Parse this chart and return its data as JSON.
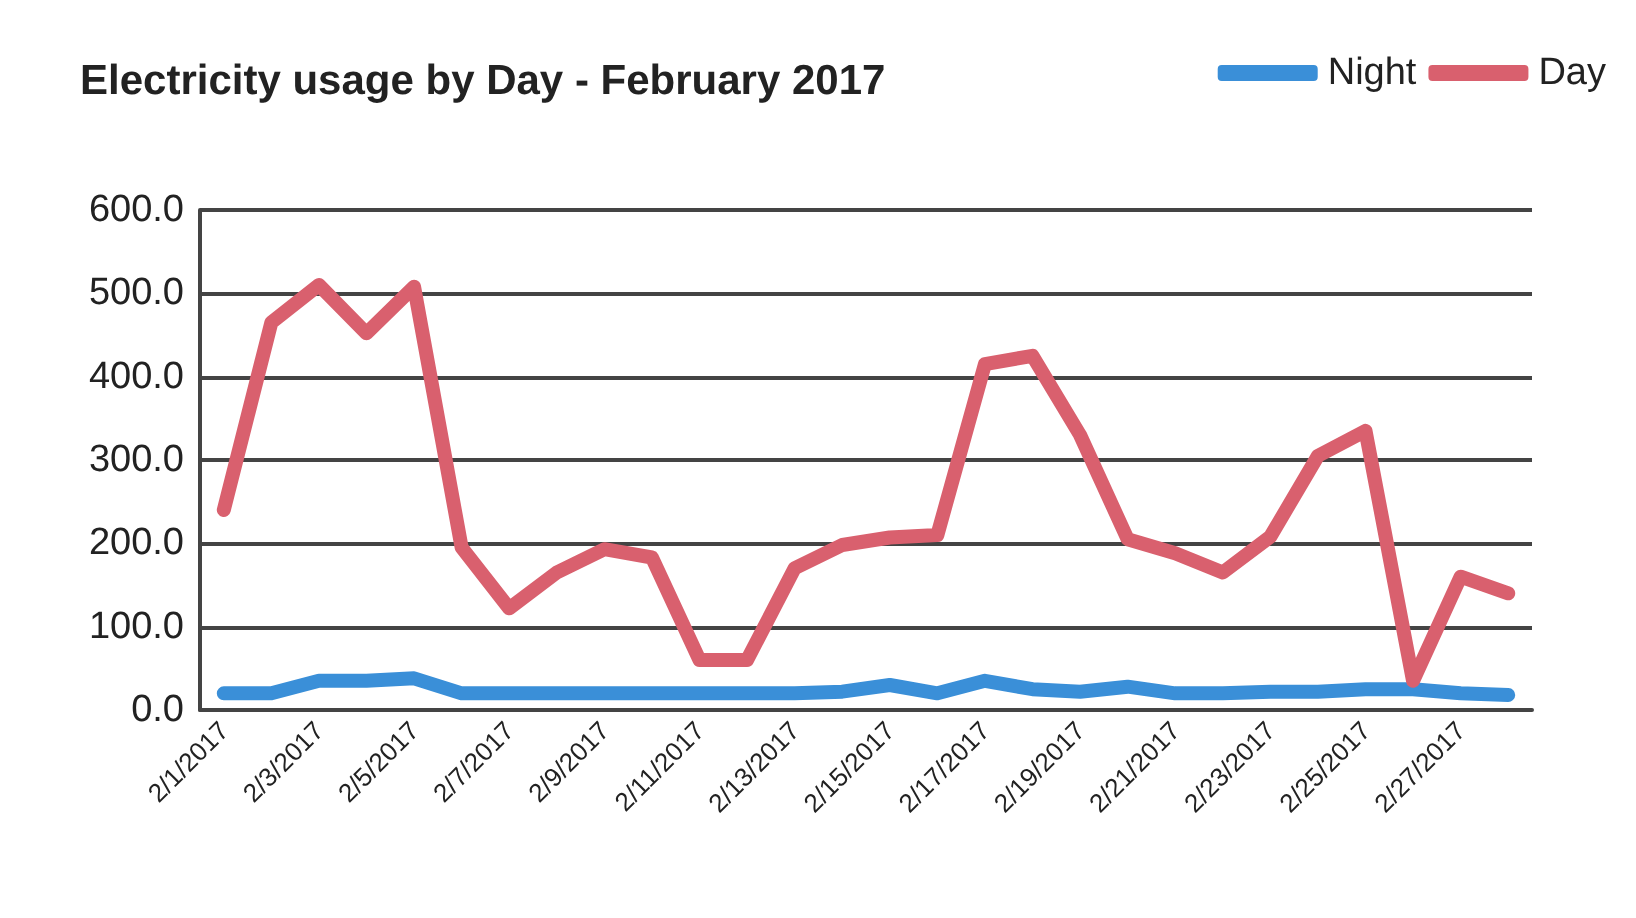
{
  "chart_data": {
    "type": "line",
    "title": "Electricity usage by Day - February 2017",
    "categories": [
      "2/1/2017",
      null,
      "2/3/2017",
      null,
      "2/5/2017",
      null,
      "2/7/2017",
      null,
      "2/9/2017",
      null,
      "2/11/2017",
      null,
      "2/13/2017",
      null,
      "2/15/2017",
      null,
      "2/17/2017",
      null,
      "2/19/2017",
      null,
      "2/21/2017",
      null,
      "2/23/2017",
      null,
      "2/25/2017",
      null,
      "2/27/2017",
      null
    ],
    "series": [
      {
        "name": "Night",
        "color": "#3a8fd8",
        "values": [
          20,
          20,
          35,
          35,
          38,
          20,
          20,
          20,
          20,
          20,
          20,
          20,
          20,
          22,
          30,
          20,
          35,
          25,
          22,
          28,
          20,
          20,
          22,
          22,
          25,
          25,
          20,
          18
        ]
      },
      {
        "name": "Day",
        "color": "#d9606e",
        "values": [
          240,
          465,
          510,
          452,
          508,
          195,
          122,
          165,
          193,
          183,
          60,
          60,
          170,
          198,
          207,
          210,
          415,
          425,
          330,
          205,
          188,
          165,
          208,
          305,
          335,
          35,
          160,
          140
        ]
      }
    ],
    "ylim": [
      0,
      600
    ],
    "yticks": [
      {
        "value": 0,
        "label": "0.0"
      },
      {
        "value": 100,
        "label": "100.0"
      },
      {
        "value": 200,
        "label": "200.0"
      },
      {
        "value": 300,
        "label": "300.0"
      },
      {
        "value": 400,
        "label": "400.0"
      },
      {
        "value": 500,
        "label": "500.0"
      },
      {
        "value": 600,
        "label": "600.0"
      }
    ],
    "grid": "y",
    "legend": "top right",
    "marker": "none",
    "line_style": "solid"
  }
}
